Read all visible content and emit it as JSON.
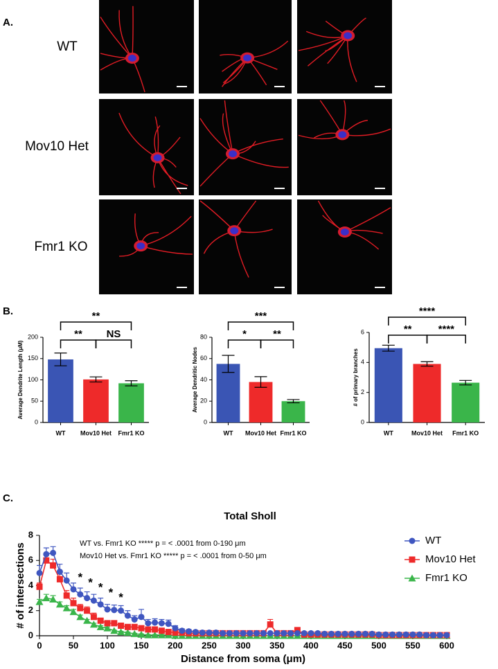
{
  "panel_a": {
    "label": "A.",
    "rows": [
      "WT",
      "Mov10 Het",
      "Fmr1 KO"
    ]
  },
  "panel_b": {
    "label": "B."
  },
  "panel_c": {
    "label": "C."
  },
  "chart_data": [
    {
      "type": "bar",
      "y_label": "Average Dendrite Length (μM)",
      "categories": [
        "WT",
        "Mov10 Het",
        "Fmr1 KO"
      ],
      "values": [
        148,
        101,
        92
      ],
      "errors": [
        15,
        6,
        6
      ],
      "colors": [
        "#3a55b4",
        "#ee2a2a",
        "#3ab54a"
      ],
      "ylim": [
        0,
        200
      ],
      "yticks": [
        0,
        50,
        100,
        150,
        200
      ],
      "brackets": [
        {
          "label": "**",
          "from": 0,
          "to": 2
        },
        {
          "label": "**",
          "from": 0,
          "to": 1
        },
        {
          "label": "NS",
          "from": 1,
          "to": 2
        }
      ]
    },
    {
      "type": "bar",
      "y_label": "Average Dendritic Nodes",
      "categories": [
        "WT",
        "Mov10 Het",
        "Fmr1 KO"
      ],
      "values": [
        55,
        38,
        20
      ],
      "errors": [
        8,
        5,
        1.5
      ],
      "colors": [
        "#3a55b4",
        "#ee2a2a",
        "#3ab54a"
      ],
      "ylim": [
        0,
        80
      ],
      "yticks": [
        0,
        20,
        40,
        60,
        80
      ],
      "brackets": [
        {
          "label": "***",
          "from": 0,
          "to": 2
        },
        {
          "label": "*",
          "from": 0,
          "to": 1
        },
        {
          "label": "**",
          "from": 1,
          "to": 2
        }
      ]
    },
    {
      "type": "bar",
      "y_label": "# of primary branches",
      "categories": [
        "WT",
        "Mov10 Het",
        "Fmr1 KO"
      ],
      "values": [
        4.95,
        3.9,
        2.65
      ],
      "errors": [
        0.2,
        0.15,
        0.15
      ],
      "colors": [
        "#3a55b4",
        "#ee2a2a",
        "#3ab54a"
      ],
      "ylim": [
        0,
        6
      ],
      "yticks": [
        0,
        2,
        4,
        6
      ],
      "brackets": [
        {
          "label": "****",
          "from": 0,
          "to": 2
        },
        {
          "label": "**",
          "from": 0,
          "to": 1
        },
        {
          "label": "****",
          "from": 1,
          "to": 2
        }
      ]
    },
    {
      "type": "line",
      "title": "Total Sholl",
      "x_label": "Distance from soma (μm)",
      "y_label": "# of intersections",
      "annotations": [
        "WT vs. Fmr1 KO ***** p = < .0001 from 0-190 μm",
        "Mov10 Het vs. Fmr1 KO ***** p = < .0001 from 0-50 μm"
      ],
      "stars": [
        {
          "text": "*",
          "x": 60,
          "y": 4.6
        },
        {
          "text": "*",
          "x": 75,
          "y": 4.2
        },
        {
          "text": "*",
          "x": 90,
          "y": 3.8
        },
        {
          "text": "*",
          "x": 105,
          "y": 3.4
        },
        {
          "text": "*",
          "x": 120,
          "y": 3.0
        }
      ],
      "x": [
        0,
        10,
        20,
        30,
        40,
        50,
        60,
        70,
        80,
        90,
        100,
        110,
        120,
        130,
        140,
        150,
        160,
        170,
        180,
        190,
        200,
        210,
        220,
        230,
        240,
        250,
        260,
        270,
        280,
        290,
        300,
        310,
        320,
        330,
        340,
        350,
        360,
        370,
        380,
        390,
        400,
        410,
        420,
        430,
        440,
        450,
        460,
        470,
        480,
        490,
        500,
        510,
        520,
        530,
        540,
        550,
        560,
        570,
        580,
        590,
        600
      ],
      "xlim": [
        0,
        600
      ],
      "ylim": [
        0,
        8
      ],
      "xticks": [
        0,
        50,
        100,
        150,
        200,
        250,
        300,
        350,
        400,
        450,
        500,
        550,
        600
      ],
      "yticks": [
        0,
        2,
        4,
        6,
        8
      ],
      "series": [
        {
          "name": "WT",
          "color": "#3f56c0",
          "marker": "circle",
          "values": [
            5.0,
            6.5,
            6.6,
            5.1,
            4.4,
            3.7,
            3.3,
            3.0,
            2.8,
            2.5,
            2.1,
            2.05,
            2.0,
            1.6,
            1.3,
            1.5,
            1.0,
            1.05,
            1.0,
            0.95,
            0.6,
            0.4,
            0.35,
            0.3,
            0.25,
            0.25,
            0.25,
            0.2,
            0.2,
            0.2,
            0.2,
            0.2,
            0.2,
            0.2,
            0.2,
            0.2,
            0.2,
            0.2,
            0.2,
            0.2,
            0.2,
            0.2,
            0.15,
            0.15,
            0.15,
            0.15,
            0.15,
            0.15,
            0.15,
            0.15,
            0.1,
            0.1,
            0.1,
            0.1,
            0.1,
            0.1,
            0.1,
            0.05,
            0.05,
            0.05,
            0.05
          ],
          "errors": [
            0.6,
            0.5,
            0.5,
            0.6,
            0.6,
            0.5,
            0.5,
            0.5,
            0.5,
            0.5,
            0.4,
            0.4,
            0.4,
            0.4,
            0.3,
            0.6,
            0.3,
            0.3,
            0.3,
            0.3,
            0.2,
            0.15,
            0.15,
            0.1,
            0.1,
            0.1,
            0.1,
            0.1,
            0.1,
            0.1,
            0.05,
            0.05,
            0.05,
            0.05,
            0.05,
            0.05,
            0.05,
            0.05,
            0.05,
            0.05,
            0.05,
            0.05,
            0.05,
            0.05,
            0.05,
            0.05,
            0.05,
            0.05,
            0.05,
            0.05,
            0.05,
            0.05,
            0.05,
            0.05,
            0.05,
            0.05,
            0.05,
            0.05,
            0.05,
            0.05,
            0.05
          ]
        },
        {
          "name": "Mov10 Het",
          "color": "#ee2a2a",
          "marker": "square",
          "values": [
            3.9,
            6.0,
            5.6,
            4.5,
            3.2,
            2.6,
            2.2,
            2.0,
            1.5,
            1.2,
            1.0,
            1.0,
            0.8,
            0.7,
            0.7,
            0.6,
            0.5,
            0.5,
            0.4,
            0.3,
            0.25,
            0.25,
            0.2,
            0.2,
            0.2,
            0.2,
            0.2,
            0.2,
            0.2,
            0.2,
            0.2,
            0.2,
            0.2,
            0.2,
            0.9,
            0.2,
            0.2,
            0.2,
            0.45,
            0.1,
            0.1,
            0.1,
            0.1,
            0.1,
            0.1,
            0.1,
            0.1,
            0.1,
            0.1,
            0.1,
            0.05,
            0.05,
            0.05,
            0.05,
            0.05,
            0.05,
            0.05,
            0.05,
            0.05,
            0.05,
            0.05
          ],
          "errors": [
            0.3,
            0.5,
            0.5,
            0.5,
            0.4,
            0.4,
            0.3,
            0.3,
            0.3,
            0.2,
            0.2,
            0.2,
            0.2,
            0.15,
            0.15,
            0.1,
            0.1,
            0.1,
            0.1,
            0.1,
            0.1,
            0.1,
            0.1,
            0.1,
            0.1,
            0.1,
            0.1,
            0.1,
            0.1,
            0.1,
            0.1,
            0.1,
            0.1,
            0.1,
            0.4,
            0.1,
            0.1,
            0.1,
            0.2,
            0.05,
            0.05,
            0.05,
            0.05,
            0.05,
            0.05,
            0.05,
            0.05,
            0.05,
            0.05,
            0.05,
            0.05,
            0.05,
            0.05,
            0.05,
            0.05,
            0.05,
            0.05,
            0.05,
            0.05,
            0.05,
            0.05
          ]
        },
        {
          "name": "Fmr1 KO",
          "color": "#3ab54a",
          "marker": "triangle",
          "values": [
            2.7,
            3.0,
            2.9,
            2.5,
            2.2,
            1.9,
            1.5,
            1.2,
            0.9,
            0.7,
            0.6,
            0.4,
            0.3,
            0.25,
            0.15,
            0.1,
            0.05,
            0.05,
            0.05,
            0.05,
            0,
            0,
            0,
            0,
            0,
            0,
            0,
            0,
            0,
            0,
            0,
            0,
            0,
            0,
            0,
            0,
            0,
            0,
            0,
            0,
            0,
            0,
            0,
            0,
            0,
            0,
            0,
            0,
            0,
            0,
            0,
            0,
            0,
            0,
            0,
            0,
            0,
            0,
            0,
            0,
            0
          ],
          "errors": [
            0.2,
            0.3,
            0.3,
            0.2,
            0.2,
            0.2,
            0.15,
            0.1,
            0.1,
            0.1,
            0.1,
            0.05,
            0.05,
            0.05,
            0.05,
            0.05,
            0.05,
            0.05,
            0.05,
            0.05,
            0,
            0,
            0,
            0,
            0,
            0,
            0,
            0,
            0,
            0,
            0,
            0,
            0,
            0,
            0,
            0,
            0,
            0,
            0,
            0,
            0,
            0,
            0,
            0,
            0,
            0,
            0,
            0,
            0,
            0,
            0,
            0,
            0,
            0,
            0,
            0,
            0,
            0,
            0,
            0,
            0
          ]
        }
      ]
    }
  ]
}
